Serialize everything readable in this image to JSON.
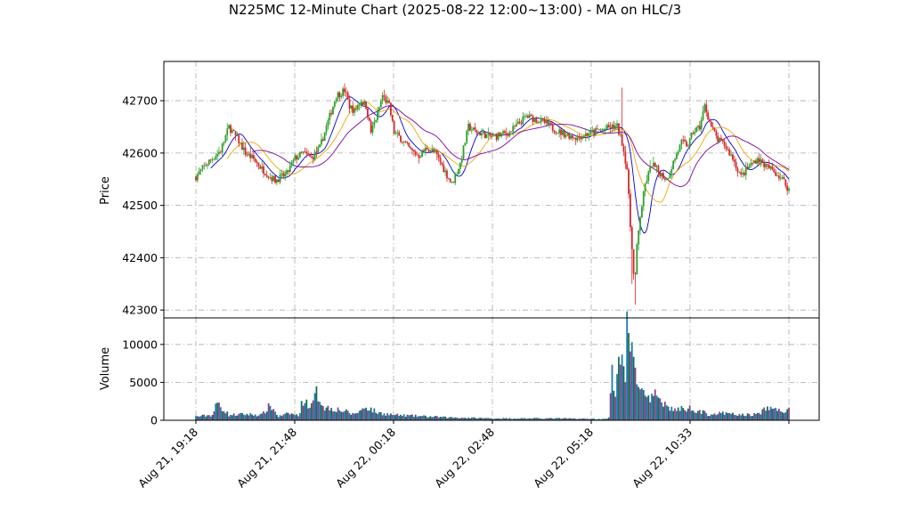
{
  "chart_data": {
    "type": "candlestick",
    "title": "N225MC 12-Minute Chart (2025-08-22 12:00~13:00) - MA on HLC/3",
    "price_panel": {
      "ylabel": "Price",
      "ylim": [
        42285,
        42775
      ],
      "yticks": [
        42300,
        42400,
        42500,
        42600,
        42700
      ],
      "grid": true
    },
    "volume_panel": {
      "ylabel": "Volume",
      "ylim": [
        0,
        13500
      ],
      "yticks": [
        0,
        5000,
        10000
      ],
      "grid": true
    },
    "xticks": [
      "Aug 21, 19:18",
      "Aug 21, 21:48",
      "Aug 22, 00:18",
      "Aug 22, 02:48",
      "Aug 22, 05:18",
      "Aug 22, 10:33"
    ],
    "colors": {
      "up": "#2ca02c",
      "down": "#d62728",
      "ma_fast": "#0000cc",
      "ma_mid": "#f0a800",
      "ma_slow": "#7f00a0",
      "vol_a": "#1f77b4",
      "vol_b": "#136f4f",
      "vol_c": "#8c3f8c"
    },
    "anchors": [
      [
        0,
        42555
      ],
      [
        6,
        42578
      ],
      [
        10,
        42590
      ],
      [
        15,
        42605
      ],
      [
        20,
        42650
      ],
      [
        25,
        42628
      ],
      [
        30,
        42600
      ],
      [
        35,
        42588
      ],
      [
        40,
        42570
      ],
      [
        45,
        42555
      ],
      [
        48,
        42548
      ],
      [
        55,
        42560
      ],
      [
        60,
        42590
      ],
      [
        65,
        42600
      ],
      [
        70,
        42590
      ],
      [
        75,
        42610
      ],
      [
        80,
        42660
      ],
      [
        85,
        42710
      ],
      [
        90,
        42720
      ],
      [
        93,
        42690
      ],
      [
        96,
        42680
      ],
      [
        100,
        42700
      ],
      [
        103,
        42690
      ],
      [
        106,
        42640
      ],
      [
        110,
        42675
      ],
      [
        113,
        42710
      ],
      [
        117,
        42690
      ],
      [
        120,
        42640
      ],
      [
        125,
        42625
      ],
      [
        130,
        42605
      ],
      [
        135,
        42595
      ],
      [
        140,
        42610
      ],
      [
        145,
        42600
      ],
      [
        150,
        42570
      ],
      [
        155,
        42540
      ],
      [
        160,
        42580
      ],
      [
        165,
        42650
      ],
      [
        170,
        42640
      ],
      [
        180,
        42630
      ],
      [
        190,
        42640
      ],
      [
        200,
        42670
      ],
      [
        210,
        42660
      ],
      [
        220,
        42640
      ],
      [
        230,
        42630
      ],
      [
        240,
        42640
      ],
      [
        250,
        42648
      ],
      [
        255,
        42650
      ],
      [
        258,
        42620
      ],
      [
        261,
        42570
      ],
      [
        263,
        42460
      ],
      [
        265,
        42385
      ],
      [
        266,
        42365
      ],
      [
        267,
        42420
      ],
      [
        269,
        42480
      ],
      [
        272,
        42540
      ],
      [
        276,
        42580
      ],
      [
        280,
        42565
      ],
      [
        285,
        42550
      ],
      [
        290,
        42590
      ],
      [
        294,
        42620
      ],
      [
        298,
        42615
      ],
      [
        301,
        42640
      ],
      [
        305,
        42650
      ],
      [
        308,
        42690
      ],
      [
        312,
        42650
      ],
      [
        316,
        42625
      ],
      [
        320,
        42615
      ],
      [
        325,
        42590
      ],
      [
        330,
        42555
      ],
      [
        335,
        42575
      ],
      [
        340,
        42590
      ],
      [
        345,
        42575
      ],
      [
        350,
        42565
      ],
      [
        355,
        42550
      ],
      [
        359,
        42530
      ]
    ],
    "volume_anchors": [
      [
        0,
        500
      ],
      [
        10,
        700
      ],
      [
        13,
        2300
      ],
      [
        20,
        700
      ],
      [
        30,
        800
      ],
      [
        40,
        700
      ],
      [
        45,
        2000
      ],
      [
        50,
        500
      ],
      [
        57,
        900
      ],
      [
        62,
        600
      ],
      [
        65,
        2700
      ],
      [
        70,
        1800
      ],
      [
        73,
        3600
      ],
      [
        78,
        1700
      ],
      [
        85,
        1500
      ],
      [
        90,
        1200
      ],
      [
        95,
        800
      ],
      [
        100,
        1300
      ],
      [
        103,
        1800
      ],
      [
        110,
        1000
      ],
      [
        120,
        700
      ],
      [
        130,
        600
      ],
      [
        140,
        500
      ],
      [
        150,
        400
      ],
      [
        160,
        350
      ],
      [
        180,
        250
      ],
      [
        200,
        250
      ],
      [
        220,
        250
      ],
      [
        235,
        200
      ],
      [
        240,
        200
      ],
      [
        245,
        150
      ],
      [
        250,
        300
      ],
      [
        252,
        6500
      ],
      [
        254,
        2500
      ],
      [
        257,
        10000
      ],
      [
        259,
        8500
      ],
      [
        260,
        4000
      ],
      [
        261,
        12600
      ],
      [
        262,
        11000
      ],
      [
        264,
        8200
      ],
      [
        266,
        7000
      ],
      [
        268,
        4500
      ],
      [
        270,
        4900
      ],
      [
        272,
        2800
      ],
      [
        275,
        2500
      ],
      [
        280,
        3600
      ],
      [
        285,
        1800
      ],
      [
        290,
        1400
      ],
      [
        295,
        1500
      ],
      [
        300,
        1600
      ],
      [
        305,
        1200
      ],
      [
        310,
        800
      ],
      [
        320,
        900
      ],
      [
        330,
        700
      ],
      [
        340,
        800
      ],
      [
        347,
        1700
      ],
      [
        355,
        1200
      ],
      [
        359,
        1300
      ]
    ]
  }
}
